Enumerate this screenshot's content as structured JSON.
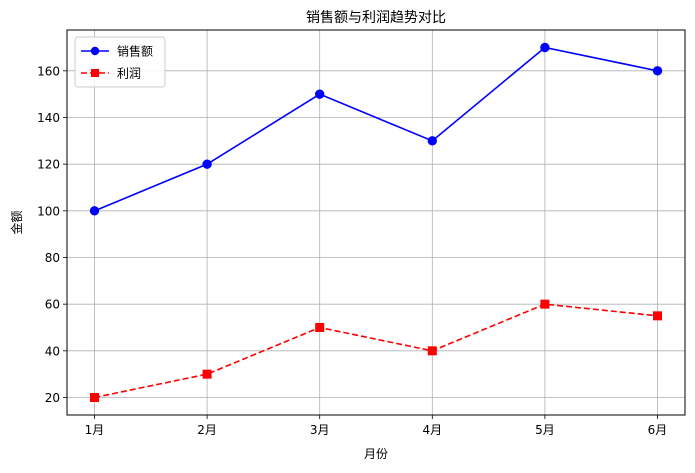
{
  "chart_data": {
    "type": "line",
    "title": "销售额与利润趋势对比",
    "xlabel": "月份",
    "ylabel": "金额",
    "categories": [
      "1月",
      "2月",
      "3月",
      "4月",
      "5月",
      "6月"
    ],
    "ylim": [
      12.5,
      177.5
    ],
    "yticks": [
      20,
      40,
      60,
      80,
      100,
      120,
      140,
      160
    ],
    "grid": true,
    "legend_position": "top-left",
    "series": [
      {
        "name": "销售额",
        "values": [
          100,
          120,
          150,
          130,
          170,
          160
        ],
        "color": "#0000ff",
        "line_style": "solid",
        "marker": "circle"
      },
      {
        "name": "利润",
        "values": [
          20,
          30,
          50,
          40,
          60,
          55
        ],
        "color": "#ff0000",
        "line_style": "dashed",
        "marker": "square"
      }
    ]
  }
}
